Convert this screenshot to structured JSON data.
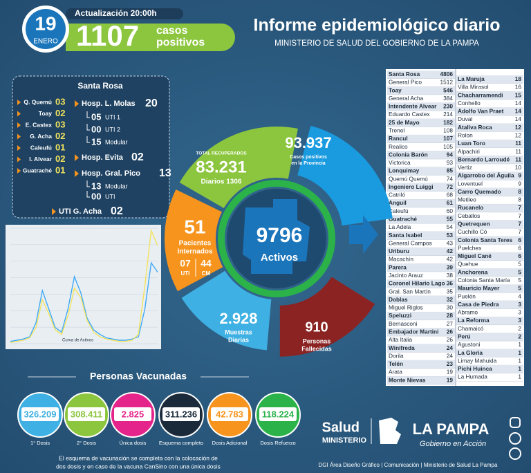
{
  "header": {
    "day": "19",
    "month": "ENERO",
    "update": "Actualización 20:00h",
    "cases": "1107",
    "cases_label": [
      "casos",
      "positivos"
    ],
    "title": "Informe epidemiológico diario",
    "subtitle": "MINISTERIO DE SALUD DEL GOBIERNO DE LA PAMPA"
  },
  "santa_rosa": {
    "title": "Santa Rosa",
    "localities": [
      {
        "name": "Q. Quemú",
        "value": "03"
      },
      {
        "name": "Toay",
        "value": "02"
      },
      {
        "name": "E. Castex",
        "value": "03"
      },
      {
        "name": "G. Acha",
        "value": "02"
      },
      {
        "name": "Caleufú",
        "value": "01"
      },
      {
        "name": "I. Alvear",
        "value": "02"
      },
      {
        "name": "Guatraché",
        "value": "01"
      }
    ],
    "hospitals": [
      {
        "name": "Hosp. L. Molas",
        "value": "20",
        "units": [
          {
            "value": "05",
            "label": "UTI 1"
          },
          {
            "value": "00",
            "label": "UTI 2"
          },
          {
            "value": "15",
            "label": "Modular"
          }
        ]
      },
      {
        "name": "Hosp. Evita",
        "value": "02",
        "units": []
      },
      {
        "name": "Hosp. Gral. Pico",
        "value": "13",
        "units": [
          {
            "value": "13",
            "label": "Modular"
          },
          {
            "value": "00",
            "label": "UTI"
          }
        ]
      },
      {
        "name": "UTI G. Acha",
        "value": "02",
        "units": []
      }
    ]
  },
  "curve": {
    "label": "Curva de Activos",
    "ylim": [
      0,
      100
    ],
    "series": [
      {
        "color": "#3fa9f5",
        "values": [
          2,
          3,
          4,
          6,
          18,
          46,
          30,
          14,
          10,
          30,
          58,
          44,
          22,
          12,
          8,
          5,
          4,
          3,
          3,
          4,
          6,
          30,
          70,
          62
        ]
      },
      {
        "color": "#f2e35c",
        "values": [
          1,
          2,
          3,
          5,
          14,
          38,
          26,
          12,
          8,
          24,
          48,
          40,
          20,
          10,
          6,
          4,
          3,
          2,
          2,
          3,
          8,
          50,
          98,
          85
        ]
      }
    ]
  },
  "donut": {
    "recovered": {
      "label": "TOTAL RECUPERADOS",
      "value": "83.231",
      "daily": "Diarios 1306"
    },
    "cases": {
      "value": "93.937",
      "label": [
        "Casos positivos",
        "en la Provincia"
      ]
    },
    "hospitalized": {
      "value": "51",
      "label": [
        "Pacientes",
        "Internados"
      ],
      "uti": "07",
      "uti_label": "UTI",
      "cm": "44",
      "cm_label": "CM"
    },
    "tests": {
      "value": "2.928",
      "label": [
        "Muestras",
        "Diarias"
      ]
    },
    "deaths": {
      "value": "910",
      "label": [
        "Personas",
        "Fallecidas"
      ]
    },
    "active": {
      "value": "9796",
      "label": "Activos"
    }
  },
  "vaccination": {
    "title": "Personas Vacunadas",
    "doses": [
      {
        "value": "326.209",
        "label": "1° Dosis",
        "color": "#3fb0e3"
      },
      {
        "value": "308.411",
        "label": "2° Dosis",
        "color": "#8cc63f"
      },
      {
        "value": "2.825",
        "label": "Única dosis",
        "color": "#e5248b"
      },
      {
        "value": "311.236",
        "label": "Esquema completo",
        "color": "#1b2a3a"
      },
      {
        "value": "42.783",
        "label": "Dosis Adicional",
        "color": "#f7941d"
      },
      {
        "value": "118.224",
        "label": "Dosis Refuerzo",
        "color": "#2bb34a"
      }
    ],
    "note": [
      "El esquema de vacunación se completa con la colocación de",
      "dos dosis y en caso de la vacuna CanSino con una única dosis"
    ]
  },
  "table": {
    "left": [
      [
        "Santa Rosa",
        4806
      ],
      [
        "General Pico",
        1512
      ],
      [
        "Toay",
        546
      ],
      [
        "General Acha",
        384
      ],
      [
        "Intendente Alvear",
        230
      ],
      [
        "Eduardo Castex",
        214
      ],
      [
        "25 de Mayo",
        182
      ],
      [
        "Trenel",
        108
      ],
      [
        "Rancul",
        107
      ],
      [
        "Realico",
        105
      ],
      [
        "Colonia Barón",
        94
      ],
      [
        "Victorica",
        93
      ],
      [
        "Lonquimay",
        85
      ],
      [
        "Quemú Quemú",
        74
      ],
      [
        "Ingeniero Luiggi",
        72
      ],
      [
        "Catriló",
        68
      ],
      [
        "Anguil",
        61
      ],
      [
        "Caleufú",
        60
      ],
      [
        "Guatraché",
        55
      ],
      [
        "La Adela",
        54
      ],
      [
        "Santa Isabel",
        53
      ],
      [
        "General Campos",
        43
      ],
      [
        "Uriburu",
        42
      ],
      [
        "Macachín",
        42
      ],
      [
        "Parera",
        39
      ],
      [
        "Jacinto Arauz",
        38
      ],
      [
        "Coronel Hilario Lago",
        36
      ],
      [
        "Gral. San Martín",
        35
      ],
      [
        "Doblas",
        32
      ],
      [
        "Miguel Riglos",
        30
      ],
      [
        "Speluzzi",
        28
      ],
      [
        "Bernasconi",
        27
      ],
      [
        "Embajador Martini",
        26
      ],
      [
        "Alta Italia",
        26
      ],
      [
        "Winifreda",
        24
      ],
      [
        "Dorila",
        24
      ],
      [
        "Telén",
        23
      ],
      [
        "Arata",
        19
      ],
      [
        "Monte Nievas",
        19
      ]
    ],
    "right": [
      [
        "La Maruja",
        18
      ],
      [
        "Villa Mirasol",
        16
      ],
      [
        "Chacharramendi",
        15
      ],
      [
        "Conhello",
        14
      ],
      [
        "Adolfo Van Praet",
        14
      ],
      [
        "Duval",
        14
      ],
      [
        "Ataliva Roca",
        12
      ],
      [
        "Rolon",
        12
      ],
      [
        "Luan Toro",
        11
      ],
      [
        "Alpachiri",
        11
      ],
      [
        "Bernardo Larroudé",
        11
      ],
      [
        "Vertiz",
        10
      ],
      [
        "Algarrobo del Águila",
        9
      ],
      [
        "Loventuel",
        9
      ],
      [
        "Carro Quemado",
        8
      ],
      [
        "Metileo",
        8
      ],
      [
        "Rucanelo",
        7
      ],
      [
        "Ceballos",
        7
      ],
      [
        "Quetrequen",
        7
      ],
      [
        "Cuchillo Có",
        7
      ],
      [
        "Colonia Santa Teres",
        6
      ],
      [
        "Puelches",
        6
      ],
      [
        "Miguel Cané",
        6
      ],
      [
        "Quehue",
        5
      ],
      [
        "Anchorena",
        5
      ],
      [
        "Colonia Santa María",
        5
      ],
      [
        "Mauricio Mayer",
        5
      ],
      [
        "Puelén",
        4
      ],
      [
        "Casa de Piedra",
        3
      ],
      [
        "Abramo",
        3
      ],
      [
        "La Reforma",
        3
      ],
      [
        "Chamaicó",
        2
      ],
      [
        "Perú",
        2
      ],
      [
        "Agustoni",
        1
      ],
      [
        "La Gloria",
        1
      ],
      [
        "Limay Mahuida",
        1
      ],
      [
        "Pichi Huinca",
        1
      ],
      [
        "La Humada",
        1
      ]
    ]
  },
  "footer": {
    "salud": "Salud",
    "ministerio": "MINISTERIO",
    "province": "LA PAMPA",
    "slogan": "Gobierno en Acción",
    "credit": "DGI Área Diseño Gráfico  |  Comunicación  |  Ministerio de Salud La Pampa"
  }
}
